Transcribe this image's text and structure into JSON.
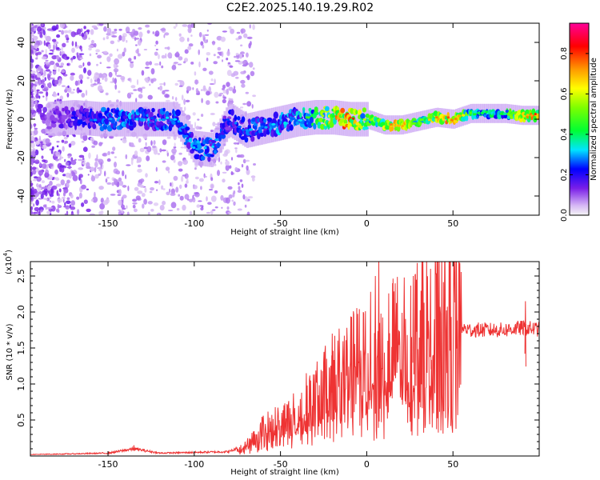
{
  "title": "C2E2.2025.140.19.29.R02",
  "chart_data": [
    {
      "type": "heatmap",
      "name": "spectrogram",
      "xlabel": "Height of straight line (km)",
      "ylabel": "Frequency (Hz)",
      "xlim": [
        -195,
        100
      ],
      "ylim": [
        -50,
        50
      ],
      "xticks": [
        -150,
        -100,
        -50,
        0,
        50
      ],
      "xtick_labels": [
        "-150",
        "-100",
        "-50",
        "0",
        "50"
      ],
      "yticks": [
        -40,
        -20,
        0,
        20,
        40
      ],
      "ytick_labels": [
        "-40",
        "-20",
        "0",
        "20",
        "40"
      ],
      "colorbar": {
        "label": "Normalized spectral amplitude",
        "range": [
          0,
          0.95
        ],
        "ticks": [
          0.0,
          0.2,
          0.4,
          0.6,
          0.8
        ],
        "tick_labels": [
          "0.0",
          "0.2",
          "0.4",
          "0.6",
          "0.8"
        ]
      },
      "ridge": [
        {
          "x": -185,
          "f": 0,
          "amp": 0.12
        },
        {
          "x": -170,
          "f": 1,
          "amp": 0.22
        },
        {
          "x": -155,
          "f": 0,
          "amp": 0.28
        },
        {
          "x": -140,
          "f": 0,
          "amp": 0.32
        },
        {
          "x": -125,
          "f": 0,
          "amp": 0.3
        },
        {
          "x": -110,
          "f": 0,
          "amp": 0.3
        },
        {
          "x": -100,
          "f": -15,
          "amp": 0.32
        },
        {
          "x": -90,
          "f": -16,
          "amp": 0.3
        },
        {
          "x": -80,
          "f": 0,
          "amp": 0.25
        },
        {
          "x": -70,
          "f": -6,
          "amp": 0.28
        },
        {
          "x": -60,
          "f": -4,
          "amp": 0.3
        },
        {
          "x": -50,
          "f": -2,
          "amp": 0.33
        },
        {
          "x": -40,
          "f": 0,
          "amp": 0.35
        },
        {
          "x": -30,
          "f": 1,
          "amp": 0.5
        },
        {
          "x": -20,
          "f": 1,
          "amp": 0.75
        },
        {
          "x": -10,
          "f": 0,
          "amp": 0.85
        },
        {
          "x": 0,
          "f": 0,
          "amp": 0.5
        },
        {
          "x": 10,
          "f": -3,
          "amp": 0.72
        },
        {
          "x": 20,
          "f": -3,
          "amp": 0.8
        },
        {
          "x": 30,
          "f": -1,
          "amp": 0.5
        },
        {
          "x": 40,
          "f": 1,
          "amp": 0.7
        },
        {
          "x": 50,
          "f": 0,
          "amp": 0.85
        },
        {
          "x": 60,
          "f": 3,
          "amp": 0.5
        },
        {
          "x": 70,
          "f": 3,
          "amp": 0.42
        },
        {
          "x": 80,
          "f": 3,
          "amp": 0.42
        },
        {
          "x": 90,
          "f": 2,
          "amp": 0.75
        },
        {
          "x": 99,
          "f": 2,
          "amp": 0.82
        }
      ]
    },
    {
      "type": "line",
      "name": "snr",
      "xlabel": "Height of straight line (km)",
      "ylabel": "SNR (10 * v/v)",
      "y_multiplier_label": "(x10",
      "y_multiplier_exponent": "4",
      "xlim": [
        -195,
        100
      ],
      "ylim": [
        0,
        27000
      ],
      "xticks": [
        -150,
        -100,
        -50,
        0,
        50
      ],
      "xtick_labels": [
        "-150",
        "-100",
        "-50",
        "0",
        "50"
      ],
      "yticks": [
        5000,
        10000,
        15000,
        20000,
        25000
      ],
      "ytick_labels": [
        "0.5",
        "1.0",
        "1.5",
        "2.0",
        "2.5"
      ],
      "color": "#ee3333",
      "series": [
        {
          "name": "SNR",
          "x": [
            -195,
            -170,
            -150,
            -135,
            -120,
            -100,
            -80,
            -70,
            -60,
            -50,
            -40,
            -30,
            -20,
            -10,
            0,
            10,
            20,
            30,
            40,
            50,
            60,
            70,
            80,
            90,
            100
          ],
          "values": [
            200,
            300,
            400,
            1000,
            400,
            500,
            600,
            1500,
            4000,
            5000,
            6000,
            8000,
            11000,
            12000,
            14000,
            14500,
            15500,
            16500,
            17500,
            18000,
            17500,
            17500,
            17500,
            17800,
            17600
          ],
          "peaks": [
            {
              "x": -135,
              "y": 1500
            },
            {
              "x": -35,
              "y": 11500
            },
            {
              "x": -20,
              "y": 17000
            },
            {
              "x": 5,
              "y": 25000
            },
            {
              "x": 7,
              "y": 27000
            },
            {
              "x": 15,
              "y": 24000
            },
            {
              "x": 27,
              "y": 25000
            },
            {
              "x": 37,
              "y": 26000
            },
            {
              "x": 92,
              "y": 21500
            }
          ]
        }
      ]
    }
  ]
}
